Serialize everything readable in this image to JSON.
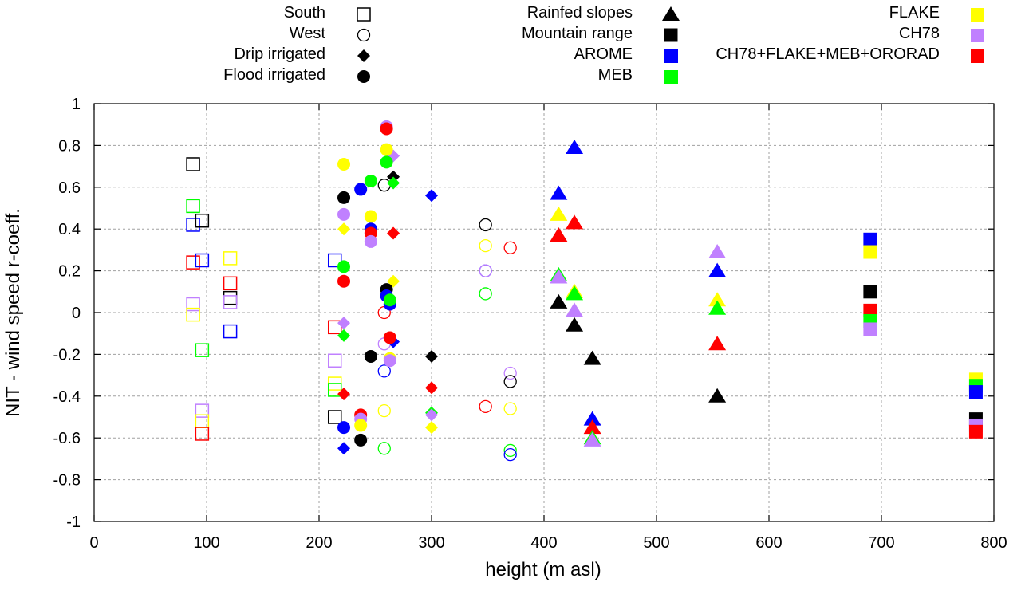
{
  "chart_data": {
    "type": "scatter",
    "title": "",
    "xlabel": "height (m asl)",
    "ylabel": "NIT - wind speed r-coeff.",
    "xlim": [
      0,
      800
    ],
    "ylim": [
      -1,
      1
    ],
    "xticks": [
      0,
      100,
      200,
      300,
      400,
      500,
      600,
      700,
      800
    ],
    "yticks": [
      -1,
      -0.8,
      -0.6,
      -0.4,
      -0.2,
      0,
      0.2,
      0.4,
      0.6,
      0.8,
      1
    ],
    "xtick_labels": [
      "0",
      "100",
      "200",
      "300",
      "400",
      "500",
      "600",
      "700",
      "800"
    ],
    "ytick_labels": [
      "-1",
      "-0.8",
      "-0.6",
      "-0.4",
      "-0.2",
      "0",
      "0.2",
      "0.4",
      "0.6",
      "0.8",
      "1"
    ],
    "grid": true,
    "legend_placement": "top-outside",
    "legend": {
      "shapes": [
        {
          "label": "South",
          "shape": "open-square"
        },
        {
          "label": "West",
          "shape": "open-circle"
        },
        {
          "label": "Drip irrigated",
          "shape": "diamond"
        },
        {
          "label": "Flood irrigated",
          "shape": "circle"
        },
        {
          "label": "Rainfed slopes",
          "shape": "triangle"
        },
        {
          "label": "Mountain range",
          "shape": "square"
        }
      ],
      "models": [
        {
          "label": "AROME",
          "color": "#0000ff"
        },
        {
          "label": "MEB",
          "color": "#00ff00"
        },
        {
          "label": "FLAKE",
          "color": "#ffff00"
        },
        {
          "label": "CH78",
          "color": "#c080ff"
        },
        {
          "label": "CH78+FLAKE+MEB+ORORAD",
          "color": "#ff0000"
        }
      ]
    },
    "colors": {
      "OBS": "#000000",
      "AROME": "#0000ff",
      "MEB": "#00ff00",
      "FLAKE": "#ffff00",
      "CH78": "#c080ff",
      "CH78+FLAKE+MEB+ORORAD": "#ff0000"
    },
    "series": [
      {
        "name": "South",
        "shape": "open-square",
        "points": [
          {
            "x": 88,
            "y": 0.71,
            "model": "OBS"
          },
          {
            "x": 88,
            "y": 0.51,
            "model": "MEB"
          },
          {
            "x": 88,
            "y": 0.42,
            "model": "AROME"
          },
          {
            "x": 96,
            "y": 0.44,
            "model": "OBS"
          },
          {
            "x": 88,
            "y": 0.24,
            "model": "CH78+FLAKE+MEB+ORORAD"
          },
          {
            "x": 96,
            "y": 0.25,
            "model": "AROME"
          },
          {
            "x": 88,
            "y": 0.04,
            "model": "CH78"
          },
          {
            "x": 88,
            "y": -0.01,
            "model": "FLAKE"
          },
          {
            "x": 96,
            "y": -0.18,
            "model": "MEB"
          },
          {
            "x": 96,
            "y": -0.47,
            "model": "CH78"
          },
          {
            "x": 96,
            "y": -0.52,
            "model": "FLAKE"
          },
          {
            "x": 96,
            "y": -0.58,
            "model": "CH78+FLAKE+MEB+ORORAD"
          },
          {
            "x": 121,
            "y": 0.26,
            "model": "FLAKE"
          },
          {
            "x": 121,
            "y": 0.14,
            "model": "CH78+FLAKE+MEB+ORORAD"
          },
          {
            "x": 121,
            "y": 0.07,
            "model": "OBS"
          },
          {
            "x": 121,
            "y": 0.05,
            "model": "CH78"
          },
          {
            "x": 121,
            "y": -0.09,
            "model": "AROME"
          },
          {
            "x": 214,
            "y": 0.25,
            "model": "AROME"
          },
          {
            "x": 214,
            "y": -0.07,
            "model": "CH78+FLAKE+MEB+ORORAD"
          },
          {
            "x": 214,
            "y": -0.23,
            "model": "CH78"
          },
          {
            "x": 214,
            "y": -0.34,
            "model": "FLAKE"
          },
          {
            "x": 214,
            "y": -0.37,
            "model": "MEB"
          },
          {
            "x": 214,
            "y": -0.5,
            "model": "OBS"
          }
        ]
      },
      {
        "name": "West",
        "shape": "open-circle",
        "points": [
          {
            "x": 258,
            "y": 0.61,
            "model": "OBS"
          },
          {
            "x": 258,
            "y": 0.0,
            "model": "CH78+FLAKE+MEB+ORORAD"
          },
          {
            "x": 258,
            "y": -0.15,
            "model": "CH78"
          },
          {
            "x": 258,
            "y": -0.28,
            "model": "AROME"
          },
          {
            "x": 258,
            "y": -0.47,
            "model": "FLAKE"
          },
          {
            "x": 258,
            "y": -0.65,
            "model": "MEB"
          },
          {
            "x": 348,
            "y": 0.42,
            "model": "OBS"
          },
          {
            "x": 348,
            "y": 0.32,
            "model": "FLAKE"
          },
          {
            "x": 348,
            "y": 0.2,
            "model": "AROME"
          },
          {
            "x": 348,
            "y": 0.2,
            "model": "CH78"
          },
          {
            "x": 348,
            "y": 0.09,
            "model": "MEB"
          },
          {
            "x": 348,
            "y": -0.45,
            "model": "CH78+FLAKE+MEB+ORORAD"
          },
          {
            "x": 370,
            "y": 0.31,
            "model": "CH78+FLAKE+MEB+ORORAD"
          },
          {
            "x": 370,
            "y": -0.29,
            "model": "CH78"
          },
          {
            "x": 370,
            "y": -0.33,
            "model": "OBS"
          },
          {
            "x": 370,
            "y": -0.46,
            "model": "FLAKE"
          },
          {
            "x": 370,
            "y": -0.66,
            "model": "MEB"
          },
          {
            "x": 370,
            "y": -0.68,
            "model": "AROME"
          }
        ]
      },
      {
        "name": "Drip irrigated",
        "shape": "diamond",
        "points": [
          {
            "x": 266,
            "y": 0.75,
            "model": "CH78"
          },
          {
            "x": 266,
            "y": 0.65,
            "model": "OBS"
          },
          {
            "x": 266,
            "y": 0.62,
            "model": "MEB"
          },
          {
            "x": 266,
            "y": 0.38,
            "model": "CH78+FLAKE+MEB+ORORAD"
          },
          {
            "x": 266,
            "y": 0.15,
            "model": "FLAKE"
          },
          {
            "x": 266,
            "y": -0.14,
            "model": "AROME"
          },
          {
            "x": 222,
            "y": 0.4,
            "model": "FLAKE"
          },
          {
            "x": 222,
            "y": -0.05,
            "model": "CH78"
          },
          {
            "x": 222,
            "y": -0.11,
            "model": "MEB"
          },
          {
            "x": 222,
            "y": -0.39,
            "model": "CH78+FLAKE+MEB+ORORAD"
          },
          {
            "x": 222,
            "y": -0.65,
            "model": "AROME"
          },
          {
            "x": 300,
            "y": 0.56,
            "model": "AROME"
          },
          {
            "x": 300,
            "y": -0.21,
            "model": "OBS"
          },
          {
            "x": 300,
            "y": -0.36,
            "model": "CH78+FLAKE+MEB+ORORAD"
          },
          {
            "x": 300,
            "y": -0.48,
            "model": "MEB"
          },
          {
            "x": 300,
            "y": -0.49,
            "model": "CH78"
          },
          {
            "x": 300,
            "y": -0.55,
            "model": "FLAKE"
          }
        ]
      },
      {
        "name": "Flood irrigated",
        "shape": "circle",
        "points": [
          {
            "x": 260,
            "y": 0.89,
            "model": "CH78"
          },
          {
            "x": 260,
            "y": 0.88,
            "model": "CH78+FLAKE+MEB+ORORAD"
          },
          {
            "x": 260,
            "y": 0.78,
            "model": "FLAKE"
          },
          {
            "x": 260,
            "y": 0.72,
            "model": "MEB"
          },
          {
            "x": 222,
            "y": 0.71,
            "model": "FLAKE"
          },
          {
            "x": 246,
            "y": 0.63,
            "model": "MEB"
          },
          {
            "x": 237,
            "y": 0.59,
            "model": "AROME"
          },
          {
            "x": 222,
            "y": 0.55,
            "model": "OBS"
          },
          {
            "x": 222,
            "y": 0.47,
            "model": "CH78"
          },
          {
            "x": 246,
            "y": 0.46,
            "model": "FLAKE"
          },
          {
            "x": 246,
            "y": 0.4,
            "model": "AROME"
          },
          {
            "x": 246,
            "y": 0.38,
            "model": "CH78+FLAKE+MEB+ORORAD"
          },
          {
            "x": 246,
            "y": 0.34,
            "model": "CH78"
          },
          {
            "x": 222,
            "y": 0.22,
            "model": "MEB"
          },
          {
            "x": 222,
            "y": 0.15,
            "model": "CH78+FLAKE+MEB+ORORAD"
          },
          {
            "x": 260,
            "y": 0.11,
            "model": "OBS"
          },
          {
            "x": 260,
            "y": 0.08,
            "model": "AROME"
          },
          {
            "x": 263,
            "y": 0.04,
            "model": "AROME"
          },
          {
            "x": 263,
            "y": 0.06,
            "model": "MEB"
          },
          {
            "x": 263,
            "y": -0.12,
            "model": "CH78+FLAKE+MEB+ORORAD"
          },
          {
            "x": 246,
            "y": -0.21,
            "model": "OBS"
          },
          {
            "x": 263,
            "y": -0.22,
            "model": "FLAKE"
          },
          {
            "x": 263,
            "y": -0.23,
            "model": "CH78"
          },
          {
            "x": 237,
            "y": -0.49,
            "model": "CH78+FLAKE+MEB+ORORAD"
          },
          {
            "x": 237,
            "y": -0.51,
            "model": "CH78"
          },
          {
            "x": 237,
            "y": -0.54,
            "model": "FLAKE"
          },
          {
            "x": 222,
            "y": -0.55,
            "model": "AROME"
          },
          {
            "x": 237,
            "y": -0.61,
            "model": "OBS"
          }
        ]
      },
      {
        "name": "Rainfed slopes",
        "shape": "triangle",
        "points": [
          {
            "x": 427,
            "y": 0.79,
            "model": "AROME"
          },
          {
            "x": 413,
            "y": 0.57,
            "model": "AROME"
          },
          {
            "x": 413,
            "y": 0.47,
            "model": "FLAKE"
          },
          {
            "x": 427,
            "y": 0.43,
            "model": "CH78+FLAKE+MEB+ORORAD"
          },
          {
            "x": 413,
            "y": 0.37,
            "model": "CH78+FLAKE+MEB+ORORAD"
          },
          {
            "x": 413,
            "y": 0.18,
            "model": "MEB"
          },
          {
            "x": 413,
            "y": 0.17,
            "model": "CH78"
          },
          {
            "x": 427,
            "y": 0.1,
            "model": "FLAKE"
          },
          {
            "x": 427,
            "y": 0.09,
            "model": "MEB"
          },
          {
            "x": 413,
            "y": 0.05,
            "model": "OBS"
          },
          {
            "x": 427,
            "y": 0.01,
            "model": "CH78"
          },
          {
            "x": 427,
            "y": -0.06,
            "model": "OBS"
          },
          {
            "x": 443,
            "y": -0.22,
            "model": "OBS"
          },
          {
            "x": 443,
            "y": -0.51,
            "model": "AROME"
          },
          {
            "x": 443,
            "y": -0.55,
            "model": "CH78+FLAKE+MEB+ORORAD"
          },
          {
            "x": 443,
            "y": -0.6,
            "model": "MEB"
          },
          {
            "x": 443,
            "y": -0.61,
            "model": "CH78"
          },
          {
            "x": 554,
            "y": 0.29,
            "model": "CH78"
          },
          {
            "x": 554,
            "y": 0.2,
            "model": "AROME"
          },
          {
            "x": 554,
            "y": 0.06,
            "model": "FLAKE"
          },
          {
            "x": 554,
            "y": 0.02,
            "model": "MEB"
          },
          {
            "x": 554,
            "y": -0.15,
            "model": "CH78+FLAKE+MEB+ORORAD"
          },
          {
            "x": 554,
            "y": -0.4,
            "model": "OBS"
          }
        ]
      },
      {
        "name": "Mountain range",
        "shape": "square",
        "points": [
          {
            "x": 690,
            "y": 0.35,
            "model": "AROME"
          },
          {
            "x": 690,
            "y": 0.29,
            "model": "FLAKE"
          },
          {
            "x": 690,
            "y": 0.1,
            "model": "OBS"
          },
          {
            "x": 690,
            "y": 0.01,
            "model": "CH78+FLAKE+MEB+ORORAD"
          },
          {
            "x": 690,
            "y": -0.04,
            "model": "MEB"
          },
          {
            "x": 690,
            "y": -0.08,
            "model": "CH78"
          },
          {
            "x": 784,
            "y": -0.32,
            "model": "FLAKE"
          },
          {
            "x": 784,
            "y": -0.35,
            "model": "MEB"
          },
          {
            "x": 784,
            "y": -0.38,
            "model": "AROME"
          },
          {
            "x": 784,
            "y": -0.51,
            "model": "OBS"
          },
          {
            "x": 784,
            "y": -0.54,
            "model": "CH78"
          },
          {
            "x": 784,
            "y": -0.57,
            "model": "CH78+FLAKE+MEB+ORORAD"
          }
        ]
      }
    ]
  }
}
